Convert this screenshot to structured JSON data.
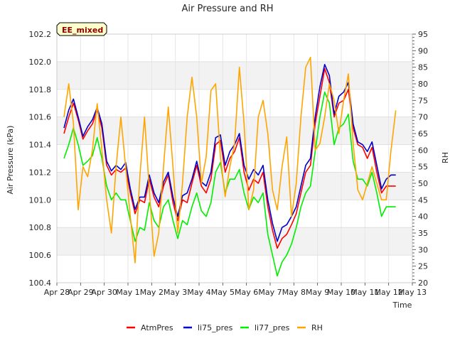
{
  "chart_data": {
    "type": "line",
    "title": "Air Pressure and RH",
    "xlabel": "Time",
    "ylabel": "Air Pressure (kPa)",
    "y2label": "RH",
    "badge": "EE_mixed",
    "x_ticks": [
      "Apr 28",
      "Apr 29",
      "Apr 30",
      "May 1",
      "May 2",
      "May 3",
      "May 4",
      "May 5",
      "May 6",
      "May 7",
      "May 8",
      "May 9",
      "May 10",
      "May 11",
      "May 12",
      "May 13"
    ],
    "xlim": [
      0,
      15
    ],
    "ylim": [
      100.4,
      102.2
    ],
    "y_ticks": [
      "100.4",
      "100.6",
      "100.8",
      "101.0",
      "101.2",
      "101.4",
      "101.6",
      "101.8",
      "102.0",
      "102.2"
    ],
    "y2lim": [
      20,
      95
    ],
    "y2_ticks": [
      "20",
      "25",
      "30",
      "35",
      "40",
      "45",
      "50",
      "55",
      "60",
      "65",
      "70",
      "75",
      "80",
      "85",
      "90",
      "95"
    ],
    "grid": "horizontal bands",
    "legend_position": "bottom-center",
    "x": [
      0.3,
      0.5,
      0.7,
      0.9,
      1.1,
      1.3,
      1.5,
      1.7,
      1.9,
      2.1,
      2.3,
      2.5,
      2.7,
      2.9,
      3.1,
      3.3,
      3.5,
      3.7,
      3.9,
      4.1,
      4.3,
      4.5,
      4.7,
      4.9,
      5.1,
      5.3,
      5.5,
      5.7,
      5.9,
      6.1,
      6.3,
      6.5,
      6.7,
      6.9,
      7.1,
      7.3,
      7.5,
      7.7,
      7.9,
      8.1,
      8.3,
      8.5,
      8.7,
      8.9,
      9.1,
      9.3,
      9.5,
      9.7,
      9.9,
      10.1,
      10.3,
      10.5,
      10.7,
      10.9,
      11.1,
      11.3,
      11.5,
      11.7,
      11.9,
      12.1,
      12.3,
      12.5,
      12.7,
      12.9,
      13.1,
      13.3,
      13.5,
      13.7,
      13.9,
      14.1,
      14.3
    ],
    "series": [
      {
        "name": "AtmPres",
        "axis": "left",
        "color": "#ff0000",
        "values": [
          101.48,
          101.6,
          101.7,
          101.58,
          101.44,
          101.5,
          101.55,
          101.65,
          101.52,
          101.25,
          101.18,
          101.22,
          101.2,
          101.23,
          101.05,
          100.9,
          101.0,
          100.98,
          101.15,
          101.02,
          100.95,
          101.1,
          101.18,
          100.98,
          100.85,
          101.0,
          100.98,
          101.12,
          101.25,
          101.1,
          101.05,
          101.15,
          101.4,
          101.43,
          101.2,
          101.3,
          101.35,
          101.45,
          101.2,
          101.07,
          101.15,
          101.12,
          101.2,
          100.95,
          100.78,
          100.65,
          100.72,
          100.75,
          100.82,
          100.9,
          101.05,
          101.2,
          101.25,
          101.55,
          101.75,
          101.95,
          101.85,
          101.6,
          101.7,
          101.72,
          101.8,
          101.52,
          101.4,
          101.38,
          101.3,
          101.38,
          101.2,
          101.05,
          101.1,
          101.1,
          101.1
        ]
      },
      {
        "name": "li75_pres",
        "axis": "left",
        "color": "#0000cc",
        "values": [
          101.52,
          101.65,
          101.73,
          101.6,
          101.46,
          101.53,
          101.58,
          101.67,
          101.55,
          101.28,
          101.21,
          101.25,
          101.22,
          101.27,
          101.08,
          100.93,
          101.02,
          101.02,
          101.18,
          101.05,
          100.98,
          101.13,
          101.2,
          101.02,
          100.88,
          101.03,
          101.05,
          101.15,
          101.28,
          101.13,
          101.1,
          101.2,
          101.45,
          101.47,
          101.25,
          101.35,
          101.4,
          101.48,
          101.25,
          101.15,
          101.22,
          101.18,
          101.25,
          101.0,
          100.83,
          100.7,
          100.8,
          100.82,
          100.88,
          100.95,
          101.1,
          101.25,
          101.3,
          101.6,
          101.82,
          101.98,
          101.9,
          101.62,
          101.75,
          101.78,
          101.85,
          101.55,
          101.42,
          101.4,
          101.35,
          101.42,
          101.25,
          101.08,
          101.15,
          101.18,
          101.18
        ]
      },
      {
        "name": "li77_pres",
        "axis": "left",
        "color": "#00ee00",
        "values": [
          101.3,
          101.4,
          101.52,
          101.4,
          101.25,
          101.28,
          101.32,
          101.45,
          101.3,
          101.1,
          101.0,
          101.05,
          101.0,
          101.0,
          100.85,
          100.7,
          100.8,
          100.78,
          100.98,
          100.85,
          100.8,
          100.95,
          101.0,
          100.85,
          100.72,
          100.85,
          100.82,
          100.95,
          101.05,
          100.92,
          100.88,
          100.98,
          101.2,
          101.27,
          101.05,
          101.15,
          101.15,
          101.22,
          101.05,
          100.93,
          101.02,
          100.98,
          101.05,
          100.75,
          100.6,
          100.45,
          100.55,
          100.6,
          100.68,
          100.8,
          100.95,
          101.05,
          101.1,
          101.35,
          101.6,
          101.78,
          101.7,
          101.4,
          101.52,
          101.55,
          101.62,
          101.28,
          101.15,
          101.15,
          101.1,
          101.2,
          101.05,
          100.88,
          100.95,
          100.95,
          100.95
        ]
      },
      {
        "name": "RH",
        "axis": "right",
        "color": "#ffa500",
        "values": [
          70,
          80,
          68,
          42,
          55,
          52,
          60,
          74,
          60,
          45,
          35,
          55,
          70,
          55,
          40,
          26,
          52,
          70,
          48,
          28,
          35,
          55,
          73,
          55,
          35,
          50,
          70,
          82,
          70,
          50,
          58,
          78,
          80,
          58,
          46,
          55,
          62,
          85,
          68,
          42,
          48,
          70,
          75,
          65,
          48,
          42,
          55,
          64,
          40,
          50,
          70,
          85,
          88,
          60,
          62,
          70,
          80,
          75,
          65,
          75,
          83,
          62,
          48,
          45,
          50,
          55,
          50,
          45,
          45,
          60,
          72
        ]
      }
    ]
  }
}
